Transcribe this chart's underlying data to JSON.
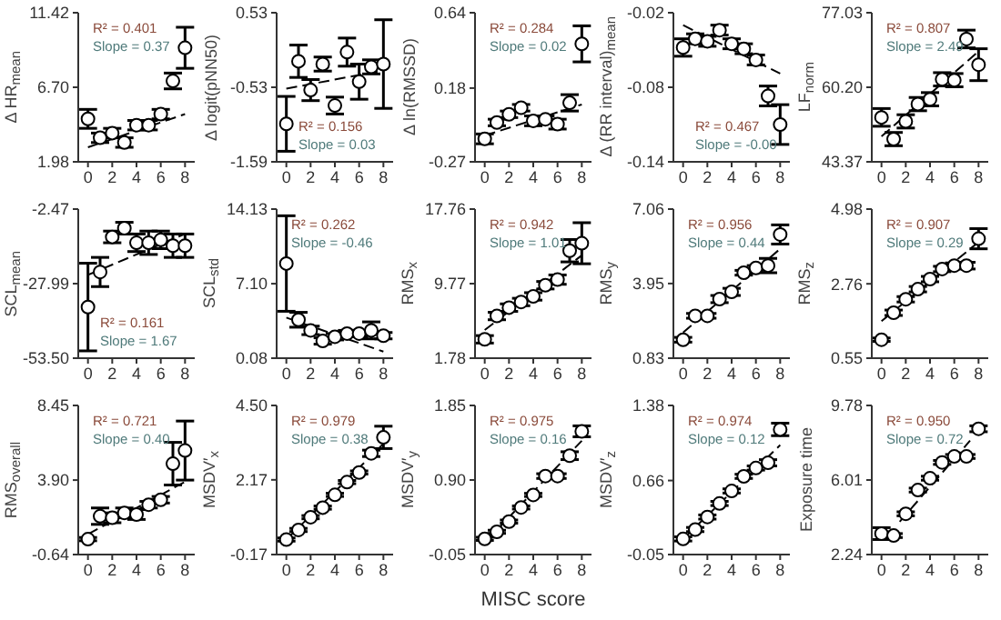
{
  "chart_data": [
    {
      "type": "scatter",
      "ylabel": "Δ HR$_{mean}$",
      "annotations": [
        "R² = 0.401",
        "Slope = 0.37"
      ],
      "xlim": [
        -0.8,
        8.8
      ],
      "xticks": [
        0,
        2,
        4,
        6,
        8
      ],
      "ylim": [
        1.98,
        11.42
      ],
      "yticks": [
        1.98,
        {
          "value": 6.7,
          "label": "6.70"
        },
        11.42
      ],
      "series": [
        {
          "color": "#000000",
          "marker": "circle",
          "x": [
            0,
            1,
            2,
            3,
            4,
            5,
            6,
            7,
            8
          ],
          "values": [
            4.7,
            3.5,
            3.8,
            3.2,
            4.3,
            4.3,
            5.0,
            7.1,
            9.2
          ],
          "errors": [
            0.6,
            0.3,
            0.3,
            0.3,
            0.3,
            0.3,
            0.3,
            0.5,
            1.3
          ]
        },
        {
          "type": "line",
          "color": "#000000",
          "marker": "none",
          "line_style": "dashed",
          "x": [
            0,
            8
          ],
          "values": [
            2.9,
            5.0
          ]
        }
      ]
    },
    {
      "type": "scatter",
      "ylabel": "Δ logit(pNN50)",
      "annotations": [
        "R² = 0.156",
        "Slope = 0.03"
      ],
      "xlim": [
        -0.8,
        8.8
      ],
      "xticks": [
        0,
        2,
        4,
        6,
        8
      ],
      "ylim": [
        -1.59,
        0.53
      ],
      "yticks": [
        -1.59,
        -0.53,
        0.53
      ],
      "series": [
        {
          "color": "#000000",
          "marker": "circle",
          "x": [
            0,
            1,
            2,
            3,
            4,
            5,
            6,
            7,
            8
          ],
          "values": [
            -1.05,
            -0.16,
            -0.57,
            -0.2,
            -0.79,
            -0.03,
            -0.45,
            -0.24,
            -0.2
          ],
          "errors": [
            0.39,
            0.23,
            0.15,
            0.1,
            0.12,
            0.2,
            0.25,
            0.1,
            0.63
          ]
        },
        {
          "type": "line",
          "color": "#000000",
          "marker": "none",
          "line_style": "dashed",
          "x": [
            0,
            8
          ],
          "values": [
            -0.55,
            -0.29
          ]
        }
      ]
    },
    {
      "type": "scatter",
      "ylabel": "Δ ln(RMSSD)",
      "annotations": [
        "R² = 0.284",
        "Slope = 0.02"
      ],
      "xlim": [
        -0.8,
        8.8
      ],
      "xticks": [
        0,
        2,
        4,
        6,
        8
      ],
      "ylim": [
        -0.27,
        0.64
      ],
      "yticks": [
        -0.27,
        0.18,
        0.64
      ],
      "series": [
        {
          "color": "#000000",
          "marker": "circle",
          "x": [
            0,
            1,
            2,
            3,
            4,
            5,
            6,
            7,
            8
          ],
          "values": [
            -0.13,
            -0.03,
            0.02,
            0.06,
            -0.02,
            -0.01,
            -0.04,
            0.09,
            0.45
          ],
          "errors": [
            0.03,
            0.02,
            0.02,
            0.02,
            0.03,
            0.02,
            0.03,
            0.05,
            0.11
          ]
        },
        {
          "type": "line",
          "color": "#000000",
          "marker": "none",
          "line_style": "dashed",
          "x": [
            0,
            8
          ],
          "values": [
            -0.11,
            0.08
          ]
        }
      ]
    },
    {
      "type": "scatter",
      "ylabel": "Δ (RR interval)$_{mean}$",
      "annotations": [
        "R² = 0.467",
        "Slope = -0.00"
      ],
      "xlim": [
        -0.8,
        8.8
      ],
      "xticks": [
        0,
        2,
        4,
        6,
        8
      ],
      "ylim": [
        -0.14,
        -0.02
      ],
      "yticks": [
        -0.14,
        -0.08,
        -0.02
      ],
      "series": [
        {
          "color": "#000000",
          "marker": "circle",
          "x": [
            0,
            1,
            2,
            3,
            4,
            5,
            6,
            7,
            8
          ],
          "values": [
            -0.048,
            -0.041,
            -0.043,
            -0.034,
            -0.045,
            -0.049,
            -0.058,
            -0.087,
            -0.11
          ],
          "errors": [
            0.007,
            0.004,
            0.004,
            0.004,
            0.004,
            0.004,
            0.004,
            0.008,
            0.016
          ]
        },
        {
          "type": "line",
          "color": "#000000",
          "marker": "none",
          "line_style": "dashed",
          "x": [
            0,
            8
          ],
          "values": [
            -0.03,
            -0.069
          ]
        }
      ]
    },
    {
      "type": "scatter",
      "ylabel": "LF$_{norm}$",
      "annotations": [
        "R² = 0.807",
        "Slope = 2.49"
      ],
      "xlim": [
        -0.8,
        8.8
      ],
      "xticks": [
        0,
        2,
        4,
        6,
        8
      ],
      "ylim": [
        43.37,
        77.03
      ],
      "yticks": [
        43.37,
        {
          "value": 60.2,
          "label": "60.20"
        },
        77.03
      ],
      "series": [
        {
          "color": "#000000",
          "marker": "circle",
          "x": [
            0,
            1,
            2,
            3,
            4,
            5,
            6,
            7,
            8
          ],
          "values": [
            53.4,
            48.5,
            52.5,
            56.4,
            57.5,
            62.0,
            61.8,
            71.1,
            65.3
          ],
          "errors": [
            2,
            1.5,
            1.5,
            1.5,
            1.5,
            1.5,
            1.5,
            2,
            3.6
          ]
        },
        {
          "type": "line",
          "color": "#000000",
          "marker": "none",
          "line_style": "dashed",
          "x": [
            0,
            8
          ],
          "values": [
            49.1,
            68.3
          ]
        }
      ]
    },
    {
      "type": "scatter",
      "ylabel": "SCL$_{mean}$",
      "annotations": [
        "R² = 0.161",
        "Slope = 1.67"
      ],
      "xlim": [
        -0.8,
        8.8
      ],
      "xticks": [
        0,
        2,
        4,
        6,
        8
      ],
      "ylim": [
        -53.5,
        -2.47
      ],
      "yticks": [
        {
          "value": -53.5,
          "label": "-53.50"
        },
        -27.99,
        -2.47
      ],
      "series": [
        {
          "color": "#000000",
          "marker": "circle",
          "x": [
            0,
            1,
            2,
            3,
            4,
            5,
            6,
            7,
            8
          ],
          "values": [
            -36,
            -24,
            -12,
            -9,
            -14,
            -14,
            -13,
            -15,
            -15
          ],
          "errors": [
            15,
            5,
            2,
            2,
            3,
            4,
            3,
            4,
            4
          ]
        },
        {
          "type": "line",
          "color": "#000000",
          "marker": "none",
          "line_style": "dashed",
          "x": [
            0,
            8
          ],
          "values": [
            -25,
            -11
          ]
        }
      ]
    },
    {
      "type": "scatter",
      "ylabel": "SCL$_{std}$",
      "annotations": [
        "R² = 0.262",
        "Slope = -0.46"
      ],
      "xlim": [
        -0.8,
        8.8
      ],
      "xticks": [
        0,
        2,
        4,
        6,
        8
      ],
      "ylim": [
        0.08,
        14.13
      ],
      "yticks": [
        0.08,
        {
          "value": 7.1,
          "label": "7.10"
        },
        14.13
      ],
      "series": [
        {
          "color": "#000000",
          "marker": "circle",
          "x": [
            0,
            1,
            2,
            3,
            4,
            5,
            6,
            7,
            8
          ],
          "values": [
            9.0,
            3.7,
            2.7,
            1.7,
            2.1,
            2.4,
            2.4,
            2.7,
            2.2
          ],
          "errors": [
            4.5,
            0.7,
            0.4,
            0.3,
            0.3,
            0.3,
            0.3,
            0.8,
            0.3
          ]
        },
        {
          "type": "line",
          "color": "#000000",
          "marker": "none",
          "line_style": "dashed",
          "x": [
            0,
            8
          ],
          "values": [
            3.9,
            0.7
          ]
        }
      ]
    },
    {
      "type": "scatter",
      "ylabel": "RMS$_{x}$",
      "annotations": [
        "R² = 0.942",
        "Slope = 1.01"
      ],
      "xlim": [
        -0.8,
        8.8
      ],
      "xticks": [
        0,
        2,
        4,
        6,
        8
      ],
      "ylim": [
        1.78,
        17.76
      ],
      "yticks": [
        1.78,
        9.77,
        17.76
      ],
      "series": [
        {
          "color": "#000000",
          "marker": "circle",
          "x": [
            0,
            1,
            2,
            3,
            4,
            5,
            6,
            7,
            8
          ],
          "values": [
            3.8,
            6.3,
            7.2,
            7.8,
            8.4,
            9.6,
            10.2,
            13.3,
            14.1
          ],
          "errors": [
            0.4,
            0.4,
            0.4,
            0.4,
            0.4,
            0.4,
            0.5,
            1.2,
            2.2
          ]
        },
        {
          "type": "line",
          "color": "#000000",
          "marker": "none",
          "line_style": "dashed",
          "x": [
            0,
            8
          ],
          "values": [
            4.8,
            12.8
          ]
        }
      ]
    },
    {
      "type": "scatter",
      "ylabel": "RMS$_{y}$",
      "annotations": [
        "R² = 0.956",
        "Slope = 0.44"
      ],
      "xlim": [
        -0.8,
        8.8
      ],
      "xticks": [
        0,
        2,
        4,
        6,
        8
      ],
      "ylim": [
        0.83,
        7.06
      ],
      "yticks": [
        0.83,
        3.95,
        7.06
      ],
      "series": [
        {
          "color": "#000000",
          "marker": "circle",
          "x": [
            0,
            1,
            2,
            3,
            4,
            5,
            6,
            7,
            8
          ],
          "values": [
            1.6,
            2.6,
            2.6,
            3.3,
            3.6,
            4.4,
            4.6,
            4.7,
            6.0
          ],
          "errors": [
            0.1,
            0.1,
            0.1,
            0.15,
            0.15,
            0.1,
            0.1,
            0.3,
            0.4
          ]
        },
        {
          "type": "line",
          "color": "#000000",
          "marker": "none",
          "line_style": "dashed",
          "x": [
            0,
            8
          ],
          "values": [
            1.9,
            5.4
          ]
        }
      ]
    },
    {
      "type": "scatter",
      "ylabel": "RMS$_{z}$",
      "annotations": [
        "R² = 0.907",
        "Slope = 0.29"
      ],
      "xlim": [
        -0.8,
        8.8
      ],
      "xticks": [
        0,
        2,
        4,
        6,
        8
      ],
      "ylim": [
        0.55,
        4.98
      ],
      "yticks": [
        0.55,
        2.76,
        4.98
      ],
      "series": [
        {
          "color": "#000000",
          "marker": "circle",
          "x": [
            0,
            1,
            2,
            3,
            4,
            5,
            6,
            7,
            8
          ],
          "values": [
            1.1,
            1.9,
            2.3,
            2.6,
            2.9,
            3.2,
            3.3,
            3.3,
            4.1
          ],
          "errors": [
            0.05,
            0.08,
            0.08,
            0.08,
            0.08,
            0.08,
            0.08,
            0.1,
            0.3
          ]
        },
        {
          "type": "line",
          "color": "#000000",
          "marker": "none",
          "line_style": "dashed",
          "x": [
            0,
            8
          ],
          "values": [
            1.65,
            4.0
          ]
        }
      ]
    },
    {
      "type": "scatter",
      "ylabel": "RMS$_{overall}$",
      "annotations": [
        "R² = 0.721",
        "Slope = 0.40"
      ],
      "xlim": [
        -0.8,
        8.8
      ],
      "xticks": [
        0,
        2,
        4,
        6,
        8
      ],
      "ylim": [
        -0.64,
        8.45
      ],
      "yticks": [
        -0.64,
        {
          "value": 3.9,
          "label": "3.90"
        },
        8.45
      ],
      "series": [
        {
          "color": "#000000",
          "marker": "circle",
          "x": [
            0,
            1,
            2,
            3,
            4,
            5,
            6,
            7,
            8
          ],
          "values": [
            0.3,
            1.7,
            1.6,
            1.9,
            1.8,
            2.4,
            2.7,
            4.9,
            5.7
          ],
          "errors": [
            0.1,
            0.5,
            0.3,
            0.3,
            0.3,
            0.2,
            0.2,
            1.3,
            1.8
          ]
        },
        {
          "type": "line",
          "color": "#000000",
          "marker": "none",
          "line_style": "dashed",
          "x": [
            0,
            8
          ],
          "values": [
            0.6,
            3.8
          ]
        }
      ]
    },
    {
      "type": "scatter",
      "ylabel": "MSDV′$_{x}$",
      "annotations": [
        "R² = 0.979",
        "Slope = 0.38"
      ],
      "xlim": [
        -0.8,
        8.8
      ],
      "xticks": [
        0,
        2,
        4,
        6,
        8
      ],
      "ylim": [
        -0.17,
        4.5
      ],
      "yticks": [
        -0.17,
        2.17,
        {
          "value": 4.5,
          "label": "4.50"
        }
      ],
      "series": [
        {
          "color": "#000000",
          "marker": "circle",
          "x": [
            0,
            1,
            2,
            3,
            4,
            5,
            6,
            7,
            8
          ],
          "values": [
            0.3,
            0.6,
            1.0,
            1.3,
            1.7,
            2.1,
            2.4,
            3.0,
            3.5
          ],
          "errors": [
            0.05,
            0.05,
            0.05,
            0.05,
            0.05,
            0.05,
            0.05,
            0.1,
            0.35
          ]
        },
        {
          "type": "line",
          "color": "#000000",
          "marker": "none",
          "line_style": "dashed",
          "x": [
            0,
            8
          ],
          "values": [
            0.3,
            3.3
          ]
        }
      ]
    },
    {
      "type": "scatter",
      "ylabel": "MSDV′$_{y}$",
      "xlabel": "MISC score",
      "annotations": [
        "R² = 0.975",
        "Slope = 0.16"
      ],
      "xlim": [
        -0.8,
        8.8
      ],
      "xticks": [
        0,
        2,
        4,
        6,
        8
      ],
      "ylim": [
        -0.05,
        1.85
      ],
      "yticks": [
        -0.05,
        {
          "value": 0.9,
          "label": "0.90"
        },
        1.85
      ],
      "series": [
        {
          "color": "#000000",
          "marker": "circle",
          "x": [
            0,
            1,
            2,
            3,
            4,
            5,
            6,
            7,
            8
          ],
          "values": [
            0.15,
            0.24,
            0.37,
            0.55,
            0.71,
            0.95,
            0.95,
            1.21,
            1.52
          ],
          "errors": [
            0.02,
            0.02,
            0.02,
            0.02,
            0.02,
            0.03,
            0.03,
            0.05,
            0.07
          ]
        },
        {
          "type": "line",
          "color": "#000000",
          "marker": "none",
          "line_style": "dashed",
          "x": [
            0,
            8
          ],
          "values": [
            0.1,
            1.4
          ]
        }
      ]
    },
    {
      "type": "scatter",
      "ylabel": "MSDV′$_{z}$",
      "annotations": [
        "R² = 0.974",
        "Slope = 0.12"
      ],
      "xlim": [
        -0.8,
        8.8
      ],
      "xticks": [
        0,
        2,
        4,
        6,
        8
      ],
      "ylim": [
        -0.05,
        1.38
      ],
      "yticks": [
        -0.05,
        0.66,
        1.38
      ],
      "series": [
        {
          "color": "#000000",
          "marker": "circle",
          "x": [
            0,
            1,
            2,
            3,
            4,
            5,
            6,
            7,
            8
          ],
          "values": [
            0.1,
            0.19,
            0.31,
            0.44,
            0.56,
            0.7,
            0.78,
            0.83,
            1.15
          ],
          "errors": [
            0.02,
            0.02,
            0.02,
            0.02,
            0.02,
            0.02,
            0.02,
            0.03,
            0.06
          ]
        },
        {
          "type": "line",
          "color": "#000000",
          "marker": "none",
          "line_style": "dashed",
          "x": [
            0,
            8
          ],
          "values": [
            0.1,
            1.0
          ]
        }
      ]
    },
    {
      "type": "scatter",
      "ylabel": "Exposure time",
      "annotations": [
        "R² = 0.950",
        "Slope = 0.72"
      ],
      "xlim": [
        -0.8,
        8.8
      ],
      "xticks": [
        0,
        2,
        4,
        6,
        8
      ],
      "ylim": [
        2.24,
        9.78
      ],
      "yticks": [
        2.24,
        6.01,
        9.78
      ],
      "series": [
        {
          "color": "#000000",
          "marker": "circle",
          "x": [
            0,
            1,
            2,
            3,
            4,
            5,
            6,
            7,
            8
          ],
          "values": [
            3.3,
            3.2,
            4.3,
            5.5,
            6.1,
            6.9,
            7.2,
            7.2,
            8.6
          ],
          "errors": [
            0.3,
            0.1,
            0.1,
            0.1,
            0.1,
            0.1,
            0.1,
            0.1,
            0.15
          ]
        },
        {
          "type": "line",
          "color": "#000000",
          "marker": "none",
          "line_style": "dashed",
          "x": [
            1.5,
            7.3
          ],
          "values": [
            3.9,
            8.0
          ]
        }
      ]
    }
  ]
}
